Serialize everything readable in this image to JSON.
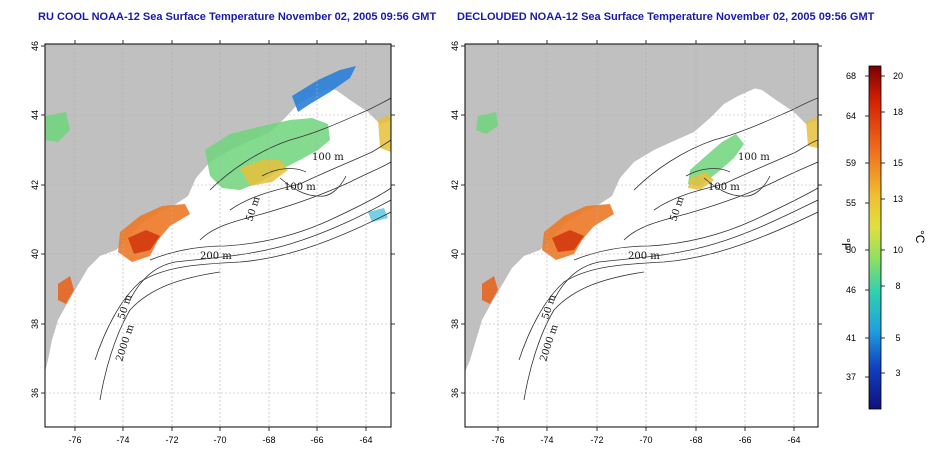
{
  "titles": {
    "left": "RU COOL NOAA-12 Sea Surface Temperature November 02, 2005 09:56 GMT",
    "right": "DECLOUDED NOAA-12 Sea Surface Temperature November 02, 2005 09:56 GMT"
  },
  "map": {
    "lat_ticks": [
      "46",
      "44",
      "42",
      "40",
      "38",
      "36"
    ],
    "lon_ticks": [
      "-76",
      "-74",
      "-72",
      "-70",
      "-68",
      "-66",
      "-64"
    ],
    "contour_labels": [
      "100 m",
      "100 m",
      "50 m",
      "200 m",
      "50 m",
      "2000 m"
    ],
    "colors": {
      "land": "#c0c0c0",
      "ocean": "#ffffff",
      "grid": "#b0b0b0",
      "contour": "#333333"
    }
  },
  "colorbar": {
    "fahrenheit_ticks": [
      "68",
      "64",
      "59",
      "55",
      "50",
      "46",
      "41",
      "37"
    ],
    "celsius_ticks": [
      "20",
      "18",
      "15",
      "13",
      "10",
      "8",
      "5",
      "3"
    ],
    "fahrenheit_unit": "°F",
    "celsius_unit": "°C",
    "colors": [
      "#7a0000",
      "#d42000",
      "#f07020",
      "#f0c030",
      "#e0e040",
      "#90e060",
      "#30d0b0",
      "#20a0e0",
      "#1040c0",
      "#10107a"
    ]
  }
}
